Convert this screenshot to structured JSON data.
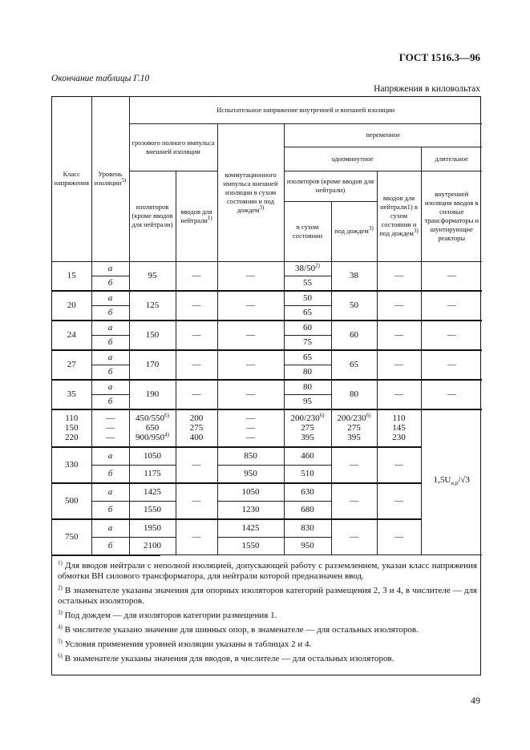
{
  "header": {
    "doc_id": "ГОСТ 1516.3—96",
    "continuation": "Окончание таблицы Г.10",
    "units": "Напряжения в киловольтах"
  },
  "table": {
    "headers": {
      "class": "Класс напря­жения",
      "level": "Уровень изоля­ции",
      "level_sup": "5)",
      "test": "Испытательное напряжение внутренней и внешней изоляции",
      "lightning": "грозового полного импульса внешней изоляции",
      "lightning_insulators": "изоляторов (кроме вводов для нейтрали)",
      "lightning_neutral": "вводов для нейтрали",
      "lightning_neutral_sup": "1)",
      "switching": "коммутацион­ного импульса внешней изоляции в сухом состоянии и под дождем",
      "switching_sup": "3)",
      "ac": "переменное",
      "one_minute": "одноминутное",
      "long": "длительное",
      "insulators": "изоляторов (кроме вводов для нейтрали)",
      "dry": "в сухом состоянии",
      "rain": "под дождем",
      "rain_sup": "3)",
      "neutral_bushings": "вводов для нейтрали1) в сухом состоянии и под дождем",
      "neutral_bushings_sup": "3)",
      "internal": "внутренней изоляции вводов в силовые трансформа­торы и шунтирующие реакторы"
    },
    "rows_low": [
      {
        "class": "15",
        "levels": [
          "а",
          "б"
        ],
        "lightning": "95",
        "neutral": "—",
        "switching": "—",
        "dry": [
          {
            "text": "38/50",
            "sup": "2)"
          },
          {
            "text": "55"
          }
        ],
        "rain": "38",
        "bush": "—",
        "internal": "—"
      },
      {
        "class": "20",
        "levels": [
          "а",
          "б"
        ],
        "lightning": "125",
        "neutral": "—",
        "switching": "—",
        "dry": [
          {
            "text": "50"
          },
          {
            "text": "65"
          }
        ],
        "rain": "50",
        "bush": "—",
        "internal": "—"
      },
      {
        "class": "24",
        "levels": [
          "а",
          "б"
        ],
        "lightning": "150",
        "neutral": "—",
        "switching": "—",
        "dry": [
          {
            "text": "60"
          },
          {
            "text": "75"
          }
        ],
        "rain": "60",
        "bush": "—",
        "internal": "—"
      },
      {
        "class": "27",
        "levels": [
          "а",
          "б"
        ],
        "lightning": "170",
        "neutral": "—",
        "switching": "—",
        "dry": [
          {
            "text": "65"
          },
          {
            "text": "80"
          }
        ],
        "rain": "65",
        "bush": "—",
        "internal": "—"
      },
      {
        "class": "35",
        "levels": [
          "а",
          "б"
        ],
        "lightning": "190",
        "neutral": "—",
        "switching": "—",
        "dry": [
          {
            "text": "80"
          },
          {
            "text": "95"
          }
        ],
        "rain": "80",
        "bush": "—",
        "internal": "—"
      }
    ],
    "rows_mid": [
      {
        "class": "110",
        "level": "—",
        "lightning": {
          "text": "450/550",
          "sup": "6)"
        },
        "neutral": "200",
        "switching": "—",
        "dry": {
          "text": "200/230",
          "sup": "6)"
        },
        "rain": {
          "text": "200/230",
          "sup": "6)"
        },
        "bush": "110"
      },
      {
        "class": "150",
        "level": "—",
        "lightning": {
          "text": "650"
        },
        "neutral": "275",
        "switching": "—",
        "dry": {
          "text": "275"
        },
        "rain": {
          "text": "275"
        },
        "bush": "145"
      },
      {
        "class": "220",
        "level": "—",
        "lightning": {
          "text": "900/950",
          "sup": "4)"
        },
        "neutral": "400",
        "switching": "—",
        "dry": {
          "text": "395"
        },
        "rain": {
          "text": "395"
        },
        "bush": "230"
      }
    ],
    "internal_formula": "1,5U",
    "internal_formula_sub": "н.р",
    "internal_formula_tail": "/√3",
    "rows_high": [
      {
        "class": "330",
        "levels": [
          "а",
          "б"
        ],
        "lightning": [
          "1050",
          "1175"
        ],
        "neutral": "—",
        "switching": [
          "850",
          "950"
        ],
        "dry": [
          "460",
          "510"
        ],
        "rain": "—",
        "bush": "—"
      },
      {
        "class": "500",
        "levels": [
          "а",
          "б"
        ],
        "lightning": [
          "1425",
          "1550"
        ],
        "neutral": "—",
        "switching": [
          "1050",
          "1230"
        ],
        "dry": [
          "630",
          "680"
        ],
        "rain": "—",
        "bush": "—"
      },
      {
        "class": "750",
        "levels": [
          "а",
          "б"
        ],
        "lightning": [
          "1950",
          "2100"
        ],
        "neutral": "—",
        "switching": [
          "1425",
          "1550"
        ],
        "dry": [
          "830",
          "950"
        ],
        "rain": "—",
        "bush": "—"
      }
    ]
  },
  "footnotes": [
    {
      "mark": "1)",
      "text": " Для вводов нейтрали с неполной изоляцией, допускающей работу с разземлением, указан класс напряжения обмотки ВН силового трансформатора, для нейтрали которой предназначен ввод."
    },
    {
      "mark": "2)",
      "text": " В знаменателе указаны значения для опорных изоляторов категорий размещения 2, 3 и 4, в числителе — для остальных изоляторов."
    },
    {
      "mark": "3)",
      "text": " Под дождем — для изоляторов категории размещения 1."
    },
    {
      "mark": "4)",
      "text": " В числителе указано значение для шинных опор, в знаменателе — для остальных изоляторов."
    },
    {
      "mark": "5)",
      "text": " Условия применения уровней изоляции указаны в таблицах 2 и 4."
    },
    {
      "mark": "6)",
      "text": " В знаменателе указаны значения для вводов, в числителе — для остальных изоляторов."
    }
  ],
  "page_number": "49"
}
